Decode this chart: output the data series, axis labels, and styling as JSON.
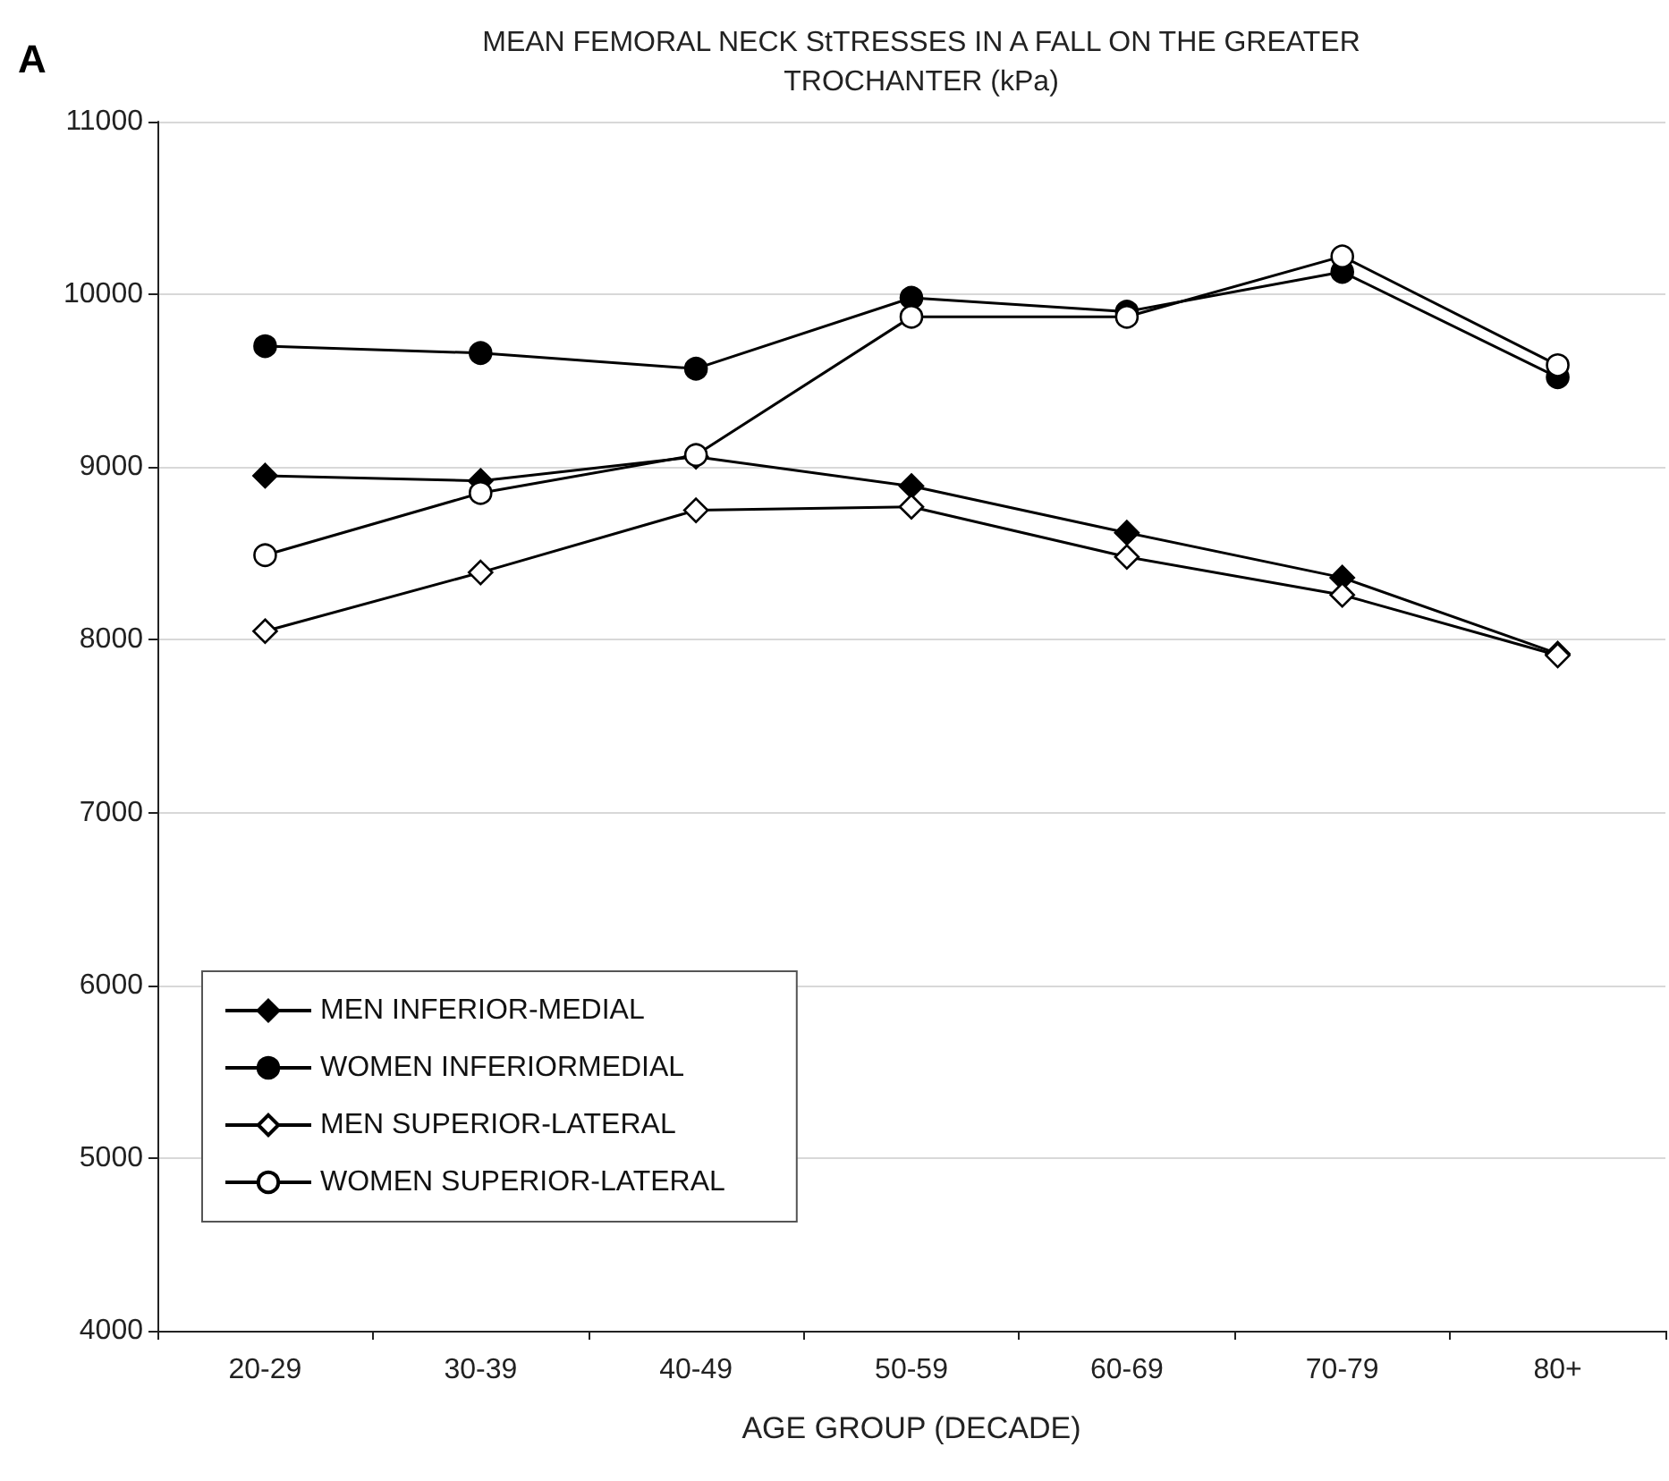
{
  "chart_data": {
    "type": "line",
    "title": "MEAN FEMORAL NECK StTRESSES IN A FALL ON THE GREATER\nTROCHANTER (kPa)",
    "xlabel": "AGE GROUP (DECADE)",
    "annotations": [
      "A"
    ],
    "categories": [
      "20-29",
      "30-39",
      "40-49",
      "50-59",
      "60-69",
      "70-79",
      "80+"
    ],
    "series": [
      {
        "name": "MEN INFERIOR-MEDIAL",
        "color": "#000000",
        "marker": "diamond",
        "values": [
          8950,
          8920,
          9060,
          8890,
          8620,
          8360,
          7920
        ]
      },
      {
        "name": "WOMEN INFERIORMEDIAL",
        "color": "#000000",
        "marker": "circle",
        "values": [
          9700,
          9660,
          9570,
          9980,
          9900,
          10130,
          9520
        ]
      },
      {
        "name": "MEN SUPERIOR-LATERAL",
        "color": "#ffffff",
        "marker": "diamond",
        "values": [
          8050,
          8390,
          8750,
          8770,
          8480,
          8260,
          7910
        ]
      },
      {
        "name": "WOMEN SUPERIOR-LATERAL",
        "color": "#ffffff",
        "marker": "circle",
        "values": [
          8490,
          8850,
          9070,
          9870,
          9870,
          10220,
          9590
        ]
      }
    ],
    "ylim": [
      4000,
      11000
    ],
    "yticks": [
      4000,
      5000,
      6000,
      7000,
      8000,
      9000,
      10000,
      11000
    ],
    "grid": "y",
    "legend": "bottom left",
    "line_style": "solid"
  }
}
